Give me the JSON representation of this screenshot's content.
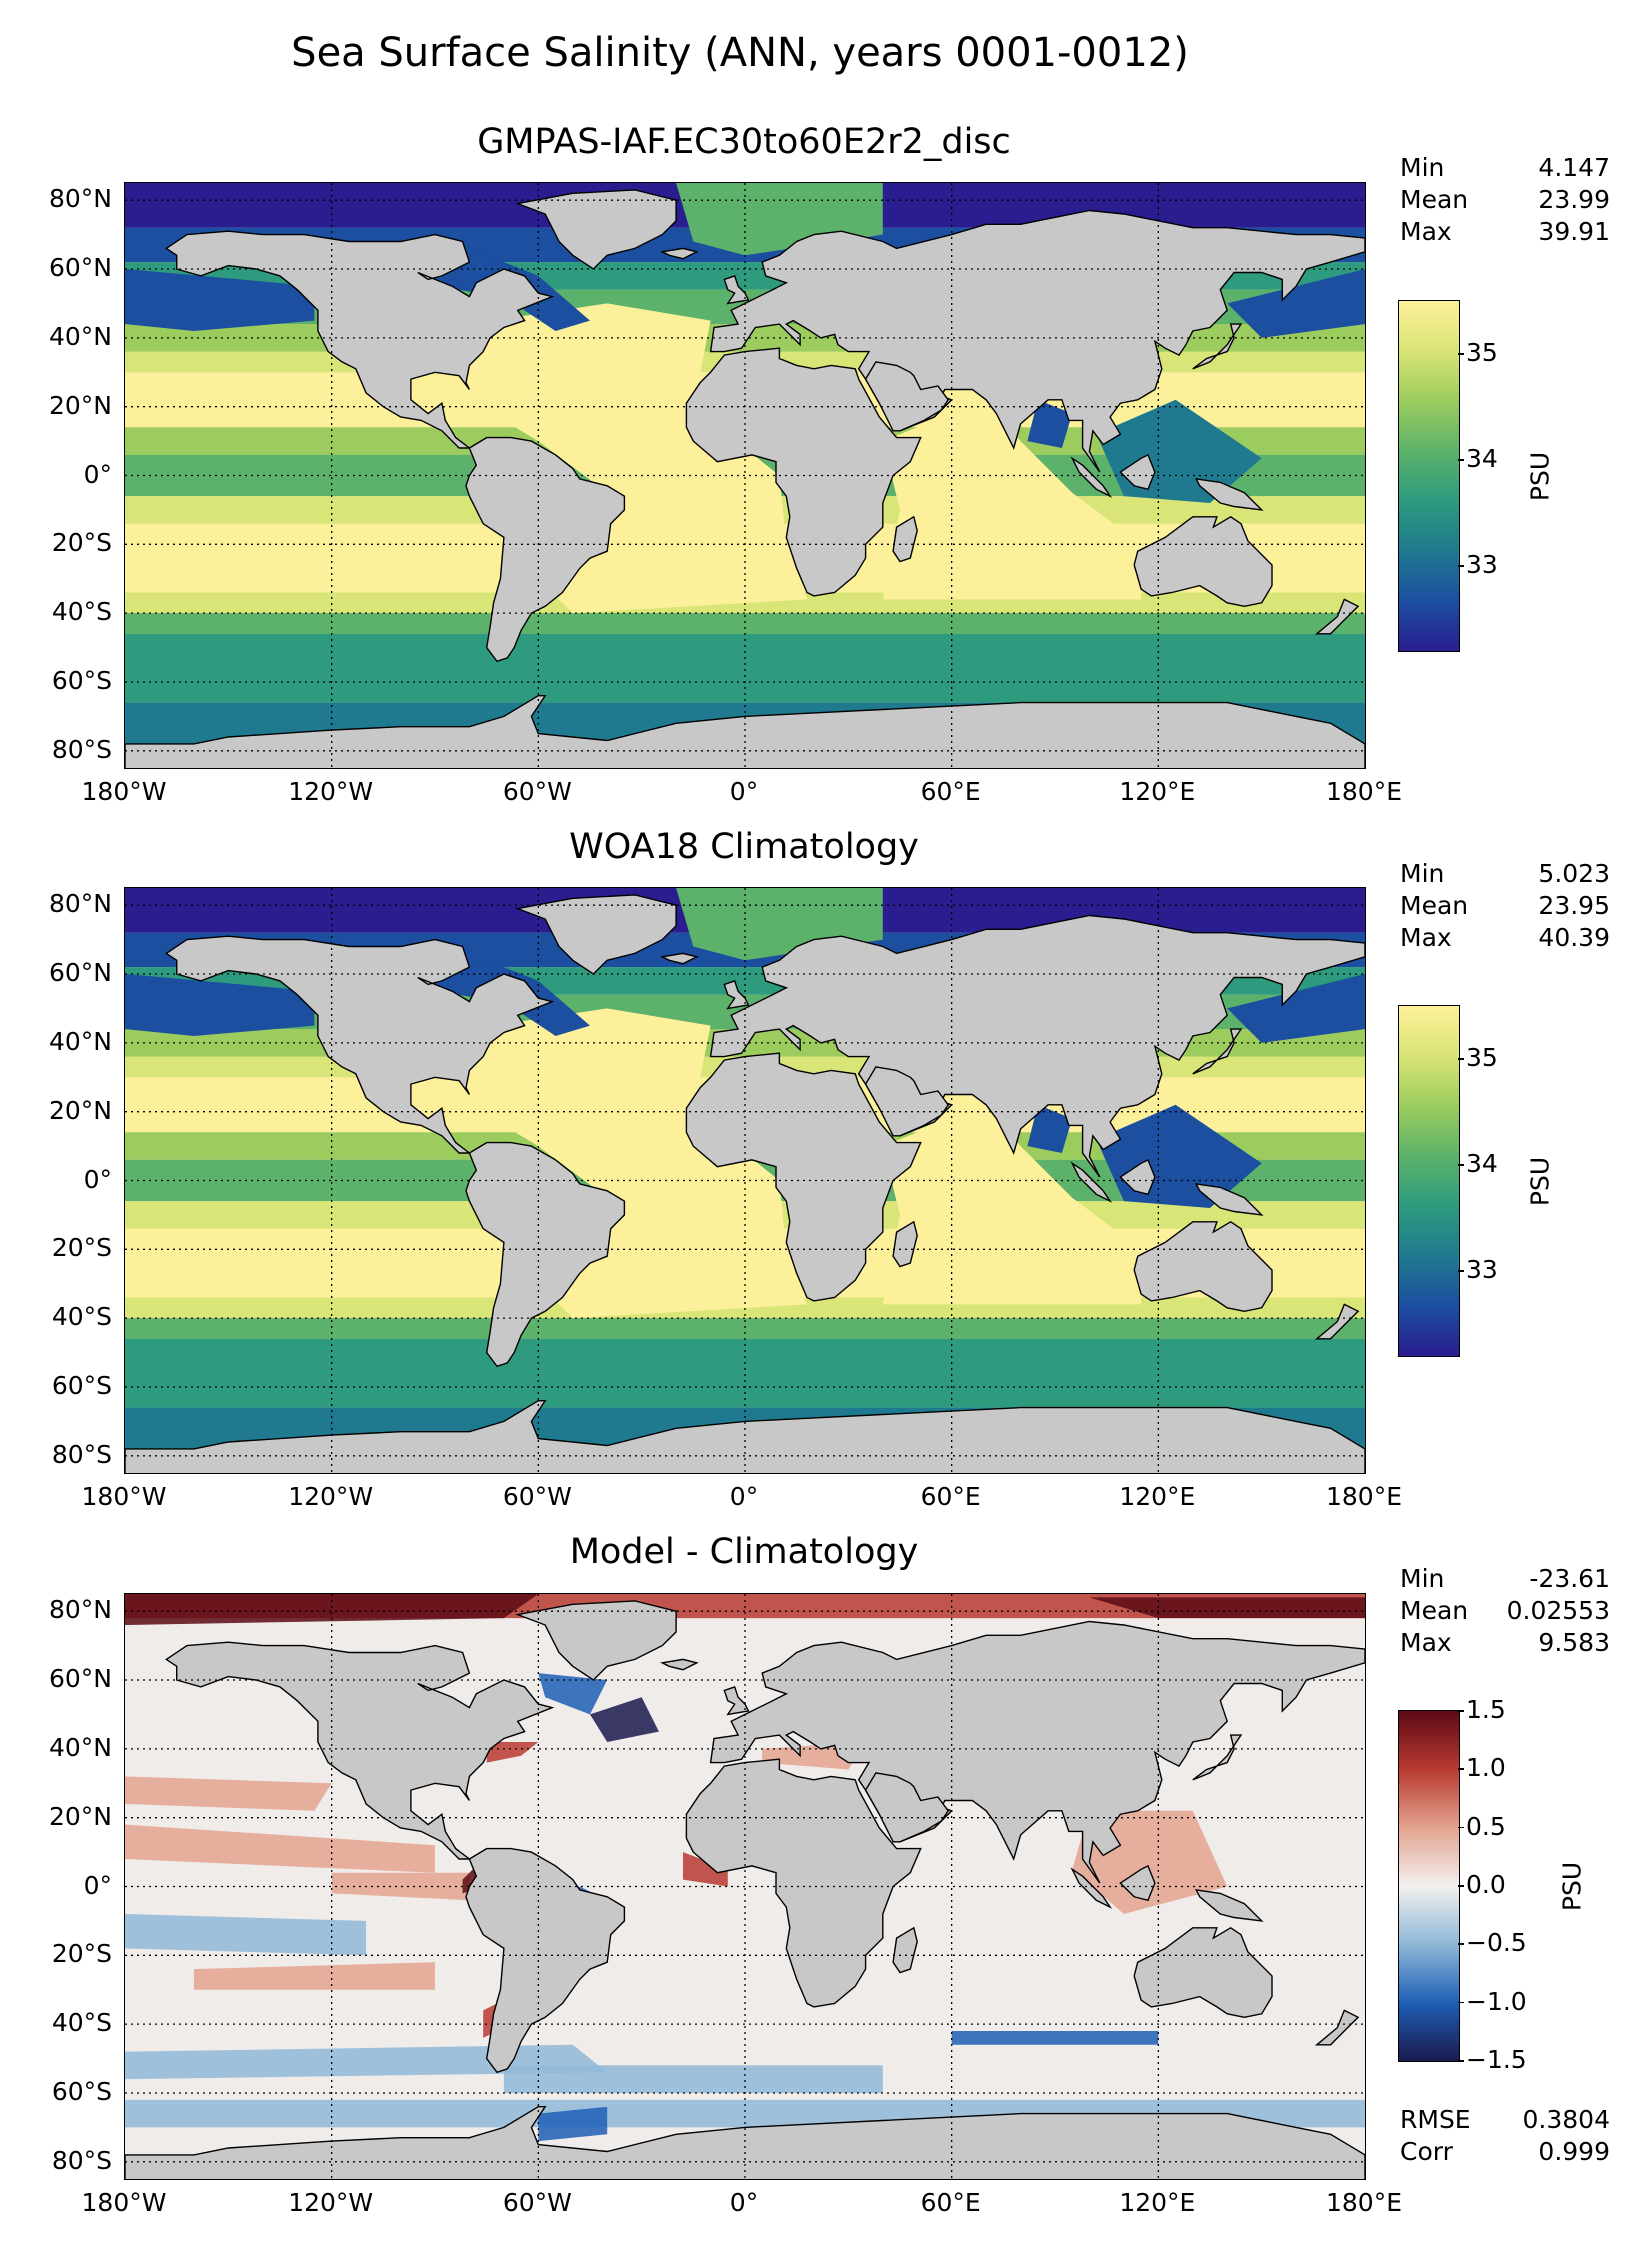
{
  "figure": {
    "title": "Sea Surface Salinity (ANN, years 0001-0012)"
  },
  "lat_ticks": [
    "80°N",
    "60°N",
    "40°N",
    "20°N",
    "0°",
    "20°S",
    "40°S",
    "60°S",
    "80°S"
  ],
  "lon_ticks": [
    "180°W",
    "120°W",
    "60°W",
    "0°",
    "60°E",
    "120°E",
    "180°E"
  ],
  "colors": {
    "land": "#c8c8c8",
    "haline": [
      "#2a1d8f",
      "#1c4fa0",
      "#1f7a8f",
      "#2e9a7e",
      "#5cb26a",
      "#9ccc5e",
      "#d9e576",
      "#fdf09a"
    ],
    "balance": [
      "#1a1a4e",
      "#1f5fb5",
      "#8fb8d8",
      "#f2f0ee",
      "#e3a38f",
      "#b83a30",
      "#5c0a14"
    ]
  },
  "panels": [
    {
      "title": "GMPAS-IAF.EC30to60E2r2_disc",
      "stats": [
        {
          "label": "Min",
          "value": "4.147"
        },
        {
          "label": "Mean",
          "value": "23.99"
        },
        {
          "label": "Max",
          "value": "39.91"
        }
      ],
      "colorbar": {
        "label": "PSU",
        "ticks": [
          "35",
          "34",
          "33"
        ],
        "cmap": "haline",
        "range": [
          32.2,
          35.5
        ]
      },
      "extra_stats": []
    },
    {
      "title": "WOA18 Climatology",
      "stats": [
        {
          "label": "Min",
          "value": "5.023"
        },
        {
          "label": "Mean",
          "value": "23.95"
        },
        {
          "label": "Max",
          "value": "40.39"
        }
      ],
      "colorbar": {
        "label": "PSU",
        "ticks": [
          "35",
          "34",
          "33"
        ],
        "cmap": "haline",
        "range": [
          32.2,
          35.5
        ]
      },
      "extra_stats": []
    },
    {
      "title": "Model - Climatology",
      "stats": [
        {
          "label": "Min",
          "value": "-23.61"
        },
        {
          "label": "Mean",
          "value": "0.02553"
        },
        {
          "label": "Max",
          "value": "9.583"
        }
      ],
      "colorbar": {
        "label": "PSU",
        "ticks": [
          "1.5",
          "1.0",
          "0.5",
          "0.0",
          "−0.5",
          "−1.0",
          "−1.5"
        ],
        "cmap": "balance",
        "range": [
          -1.5,
          1.5
        ]
      },
      "extra_stats": [
        {
          "label": "RMSE",
          "value": "0.3804"
        },
        {
          "label": "Corr",
          "value": "0.999"
        }
      ]
    }
  ]
}
